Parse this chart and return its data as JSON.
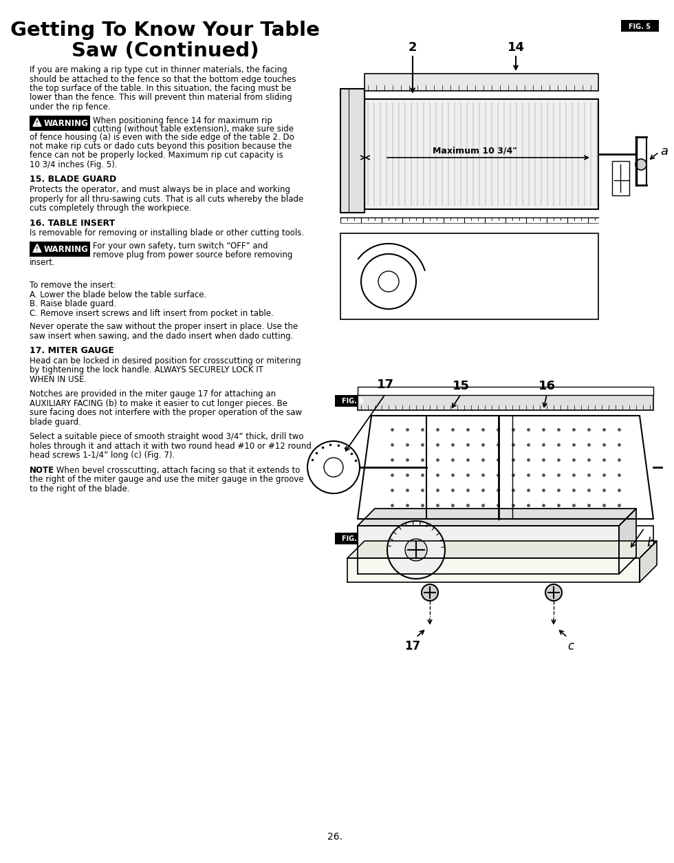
{
  "bg_color": "#ffffff",
  "title_line1": "Getting To Know Your Table",
  "title_line2": "Saw (Continued)",
  "page_number": "26.",
  "fig5_label": "FIG. 5",
  "fig6_label": "FIG. 6",
  "fig7_label": "FIG. 7",
  "body_para1": [
    "If you are making a rip type cut in thinner materials, the facing",
    "should be attached to the fence so that the bottom edge touches",
    "the top surface of the table. In this situation, the facing must be",
    "lower than the fence. This will prevent thin material from sliding",
    "under the rip fence."
  ],
  "warn1_beside": [
    "When positioning fence 14 for maximum rip",
    "cutting (without table extension), make sure side"
  ],
  "warn1_cont": [
    "of fence housing (a) is even with the side edge of the table 2. Do",
    "not make rip cuts or dado cuts beyond this position because the",
    "fence can not be properly locked. Maximum rip cut capacity is",
    "10 3/4 inches (Fig. 5)."
  ],
  "sec15_title": "15. BLADE GUARD",
  "sec15_body": [
    "Protects the operator, and must always be in place and working",
    "properly for all thru-sawing cuts. That is all cuts whereby the blade",
    "cuts completely through the workpiece."
  ],
  "sec16_title": "16. TABLE INSERT",
  "sec16_body": [
    "Is removable for removing or installing blade or other cutting tools."
  ],
  "warn2_beside": [
    "For your own safety, turn switch “OFF” and",
    "remove plug from power source before removing"
  ],
  "warn2_cont": [
    "insert."
  ],
  "steps": [
    "",
    "To remove the insert:",
    "A. Lower the blade below the table surface.",
    "B. Raise blade guard.",
    "C. Remove insert screws and lift insert from pocket in table."
  ],
  "never_para": [
    "Never operate the saw without the proper insert in place. Use the",
    "saw insert when sawing, and the dado insert when dado cutting."
  ],
  "sec17_title": "17. MITER GAUGE",
  "sec17_body": [
    "Head can be locked in desired position for crosscutting or mitering",
    "by tightening the lock handle. ALWAYS SECURELY LOCK IT",
    "WHEN IN USE."
  ],
  "notch_para": [
    "Notches are provided in the miter gauge 17 for attaching an",
    "AUXILIARY FACING (b) to make it easier to cut longer pieces. Be",
    "sure facing does not interfere with the proper operation of the saw",
    "blade guard."
  ],
  "select_para": [
    "Select a suitable piece of smooth straight wood 3/4” thick, drill two",
    "holes through it and attach it with two round head #10 or #12 round",
    "head screws 1-1/4” long (c) (Fig. 7)."
  ],
  "note_bold": "NOTE",
  "note_rest": ": When bevel crosscutting, attach facing so that it extends to",
  "note_cont": [
    "the right of the miter gauge and use the miter gauge in the groove",
    "to the right of the blade."
  ]
}
